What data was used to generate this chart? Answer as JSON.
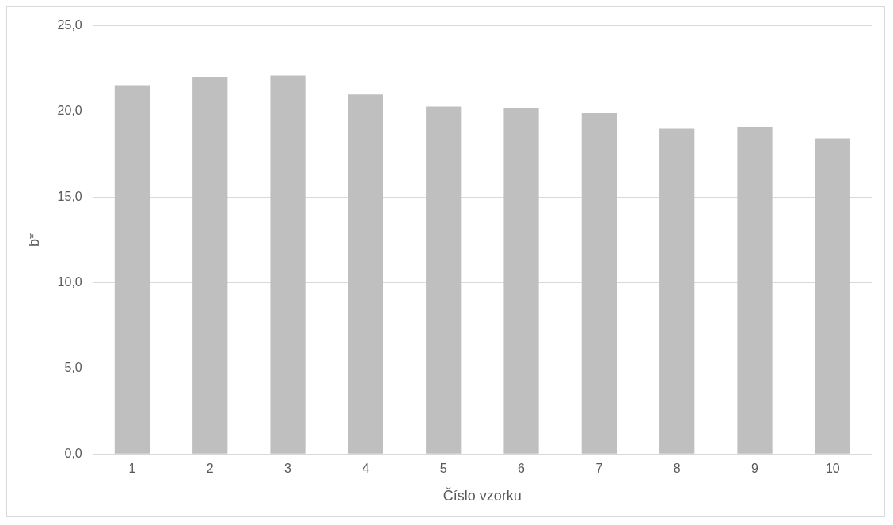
{
  "chart_data": {
    "type": "bar",
    "xlabel": "Číslo vzorku",
    "ylabel": "b*",
    "categories": [
      "1",
      "2",
      "3",
      "4",
      "5",
      "6",
      "7",
      "8",
      "9",
      "10"
    ],
    "values": [
      21.5,
      22.0,
      22.1,
      21.0,
      20.3,
      20.2,
      19.9,
      19.0,
      19.1,
      18.4
    ],
    "color": "#bfbfbf",
    "ylim": [
      0,
      25
    ],
    "yticks": [
      {
        "value": 0,
        "label": "0,0"
      },
      {
        "value": 5,
        "label": "5,0"
      },
      {
        "value": 10,
        "label": "10,0"
      },
      {
        "value": 15,
        "label": "15,0"
      },
      {
        "value": 20,
        "label": "20,0"
      },
      {
        "value": 25,
        "label": "25,0"
      }
    ],
    "grid": "y",
    "legend": false
  }
}
